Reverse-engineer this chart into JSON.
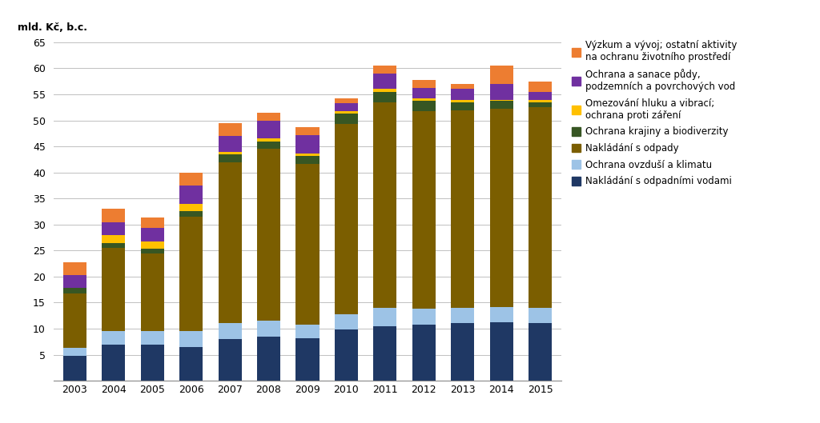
{
  "years": [
    2003,
    2004,
    2005,
    2006,
    2007,
    2008,
    2009,
    2010,
    2011,
    2012,
    2013,
    2014,
    2015
  ],
  "series": {
    "Nakládání s odpadními vodami": [
      4.8,
      7.0,
      7.0,
      6.5,
      8.0,
      8.5,
      8.2,
      9.8,
      10.5,
      10.8,
      11.0,
      11.2,
      11.0
    ],
    "Ochrana ovzduší a klimatu": [
      1.5,
      2.5,
      2.5,
      3.0,
      3.0,
      3.0,
      2.5,
      3.0,
      3.5,
      3.0,
      3.0,
      3.0,
      3.0
    ],
    "Nakládání s odpady": [
      10.5,
      16.0,
      15.0,
      22.0,
      31.0,
      33.0,
      31.0,
      36.5,
      39.5,
      38.0,
      38.0,
      38.0,
      38.5
    ],
    "Ochrana krajiny a biodiverzity": [
      1.0,
      1.0,
      0.8,
      1.0,
      1.5,
      1.5,
      1.5,
      2.0,
      2.0,
      2.0,
      1.5,
      1.5,
      1.0
    ],
    "Omezování hluku a vibrací; ochrana proti záření": [
      0.0,
      1.5,
      1.5,
      1.5,
      0.5,
      0.5,
      0.5,
      0.5,
      0.5,
      0.5,
      0.5,
      0.3,
      0.5
    ],
    "Ochrana a sanace půdy, podzemních a povrchových vod": [
      2.5,
      2.5,
      2.5,
      3.5,
      3.0,
      3.5,
      3.5,
      1.5,
      3.0,
      2.0,
      2.0,
      3.0,
      1.5
    ],
    "Výzkum a vývoj; ostatní aktivity na ochranu životního prostředí": [
      2.5,
      2.5,
      2.0,
      2.5,
      2.5,
      1.5,
      1.5,
      1.0,
      1.5,
      1.5,
      1.0,
      3.5,
      2.0
    ]
  },
  "colors": {
    "Nakládání s odpadními vodami": "#1f3864",
    "Ochrana ovzduší a klimatu": "#9dc3e6",
    "Nakládání s odpady": "#7b5e00",
    "Ochrana krajiny a biodiverzity": "#375623",
    "Omezování hluku a vibrací; ochrana proti záření": "#ffc000",
    "Ochrana a sanace půdy, podzemních a povrchových vod": "#7030a0",
    "Výzkum a vývoj; ostatní aktivity na ochranu životního prostředí": "#ed7d31"
  },
  "ylabel": "mld. Kč, b.c.",
  "ylim": [
    0,
    65
  ],
  "yticks": [
    0,
    5,
    10,
    15,
    20,
    25,
    30,
    35,
    40,
    45,
    50,
    55,
    60,
    65
  ],
  "bar_width": 0.6,
  "legend_order": [
    "Výzkum a vývoj; ostatní aktivity na ochranu životního prostředí",
    "Ochrana a sanace půdy, podzemních a povrchových vod",
    "Omezování hluku a vibrací; ochrana proti záření",
    "Ochrana krajiny a biodiverzity",
    "Nakládání s odpady",
    "Ochrana ovzduší a klimatu",
    "Nakládání s odpadními vodami"
  ],
  "legend_labels": {
    "Výzkum a vývoj; ostatní aktivity na ochranu životního prostředí": "Výzkum a vývoj; ostatní aktivity\nna ochranu životního prostředí",
    "Ochrana a sanace půdy, podzemních a povrchových vod": "Ochrana a sanace půdy,\npodzemních a povrchových vod",
    "Omezování hluku a vibrací; ochrana proti záření": "Omezování hluku a vibrací;\nochrana proti záření",
    "Ochrana krajiny a biodiverzity": "Ochrana krajiny a biodiverzity",
    "Nakládání s odpady": "Nakládání s odpady",
    "Ochrana ovzduší a klimatu": "Ochrana ovzduší a klimatu",
    "Nakládání s odpadními vodami": "Nakládání s odpadními vodami"
  }
}
